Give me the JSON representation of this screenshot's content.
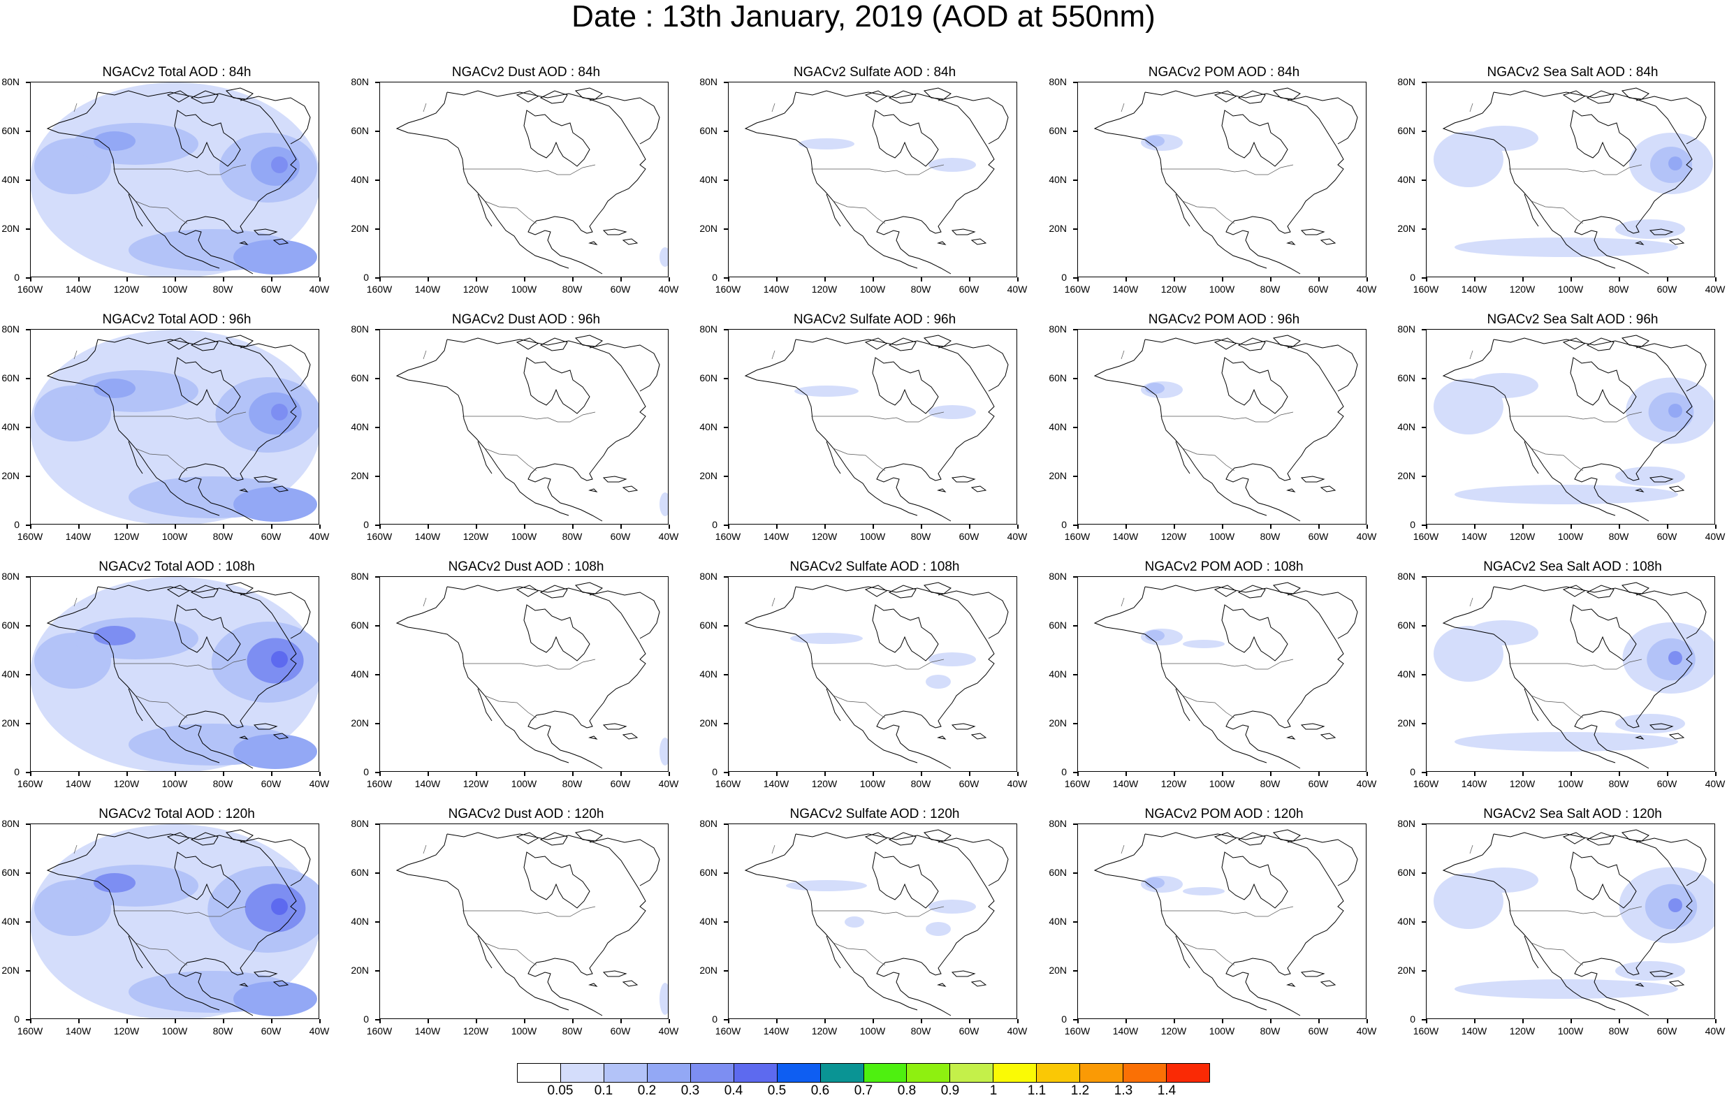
{
  "title": "Date : 13th January, 2019 (AOD at 550nm)",
  "rows": [
    "84h",
    "96h",
    "108h",
    "120h"
  ],
  "panels": [
    [
      "NGACv2 Total AOD : 84h",
      "NGACv2 Dust AOD : 84h",
      "NGACv2 Sulfate AOD : 84h",
      "NGACv2 POM AOD : 84h",
      "NGACv2 Sea Salt AOD : 84h"
    ],
    [
      "NGACv2 Total AOD : 96h",
      "NGACv2 Dust AOD : 96h",
      "NGACv2 Sulfate AOD : 96h",
      "NGACv2 POM AOD : 96h",
      "NGACv2 Sea Salt AOD : 96h"
    ],
    [
      "NGACv2 Total AOD : 108h",
      "NGACv2 Dust AOD : 108h",
      "NGACv2 Sulfate AOD : 108h",
      "NGACv2 POM AOD : 108h",
      "NGACv2 Sea Salt AOD : 108h"
    ],
    [
      "NGACv2 Total AOD : 120h",
      "NGACv2 Dust AOD : 120h",
      "NGACv2 Sulfate AOD : 120h",
      "NGACv2 POM AOD : 120h",
      "NGACv2 Sea Salt  AOD : 120h"
    ]
  ],
  "axes": {
    "lon_labels": [
      "160W",
      "140W",
      "120W",
      "100W",
      "80W",
      "60W",
      "40W"
    ],
    "lat_labels": [
      "80N",
      "60N",
      "40N",
      "20N",
      "0"
    ],
    "lon_range": [
      -160,
      -40
    ],
    "lat_range": [
      0,
      80
    ]
  },
  "colorbar": {
    "colors": [
      "#ffffff",
      "#d4ddfb",
      "#b3c3f8",
      "#93a8f5",
      "#7d8ef2",
      "#5d6aef",
      "#0e5ef2",
      "#0a9494",
      "#4ef010",
      "#8ef010",
      "#c4f04a",
      "#fafa05",
      "#fac805",
      "#fa9a05",
      "#fa7005",
      "#fa2a05"
    ],
    "labels": [
      "0.05",
      "0.1",
      "0.2",
      "0.3",
      "0.4",
      "0.5",
      "0.6",
      "0.7",
      "0.8",
      "0.9",
      "1",
      "1.1",
      "1.2",
      "1.3",
      "1.4"
    ]
  }
}
